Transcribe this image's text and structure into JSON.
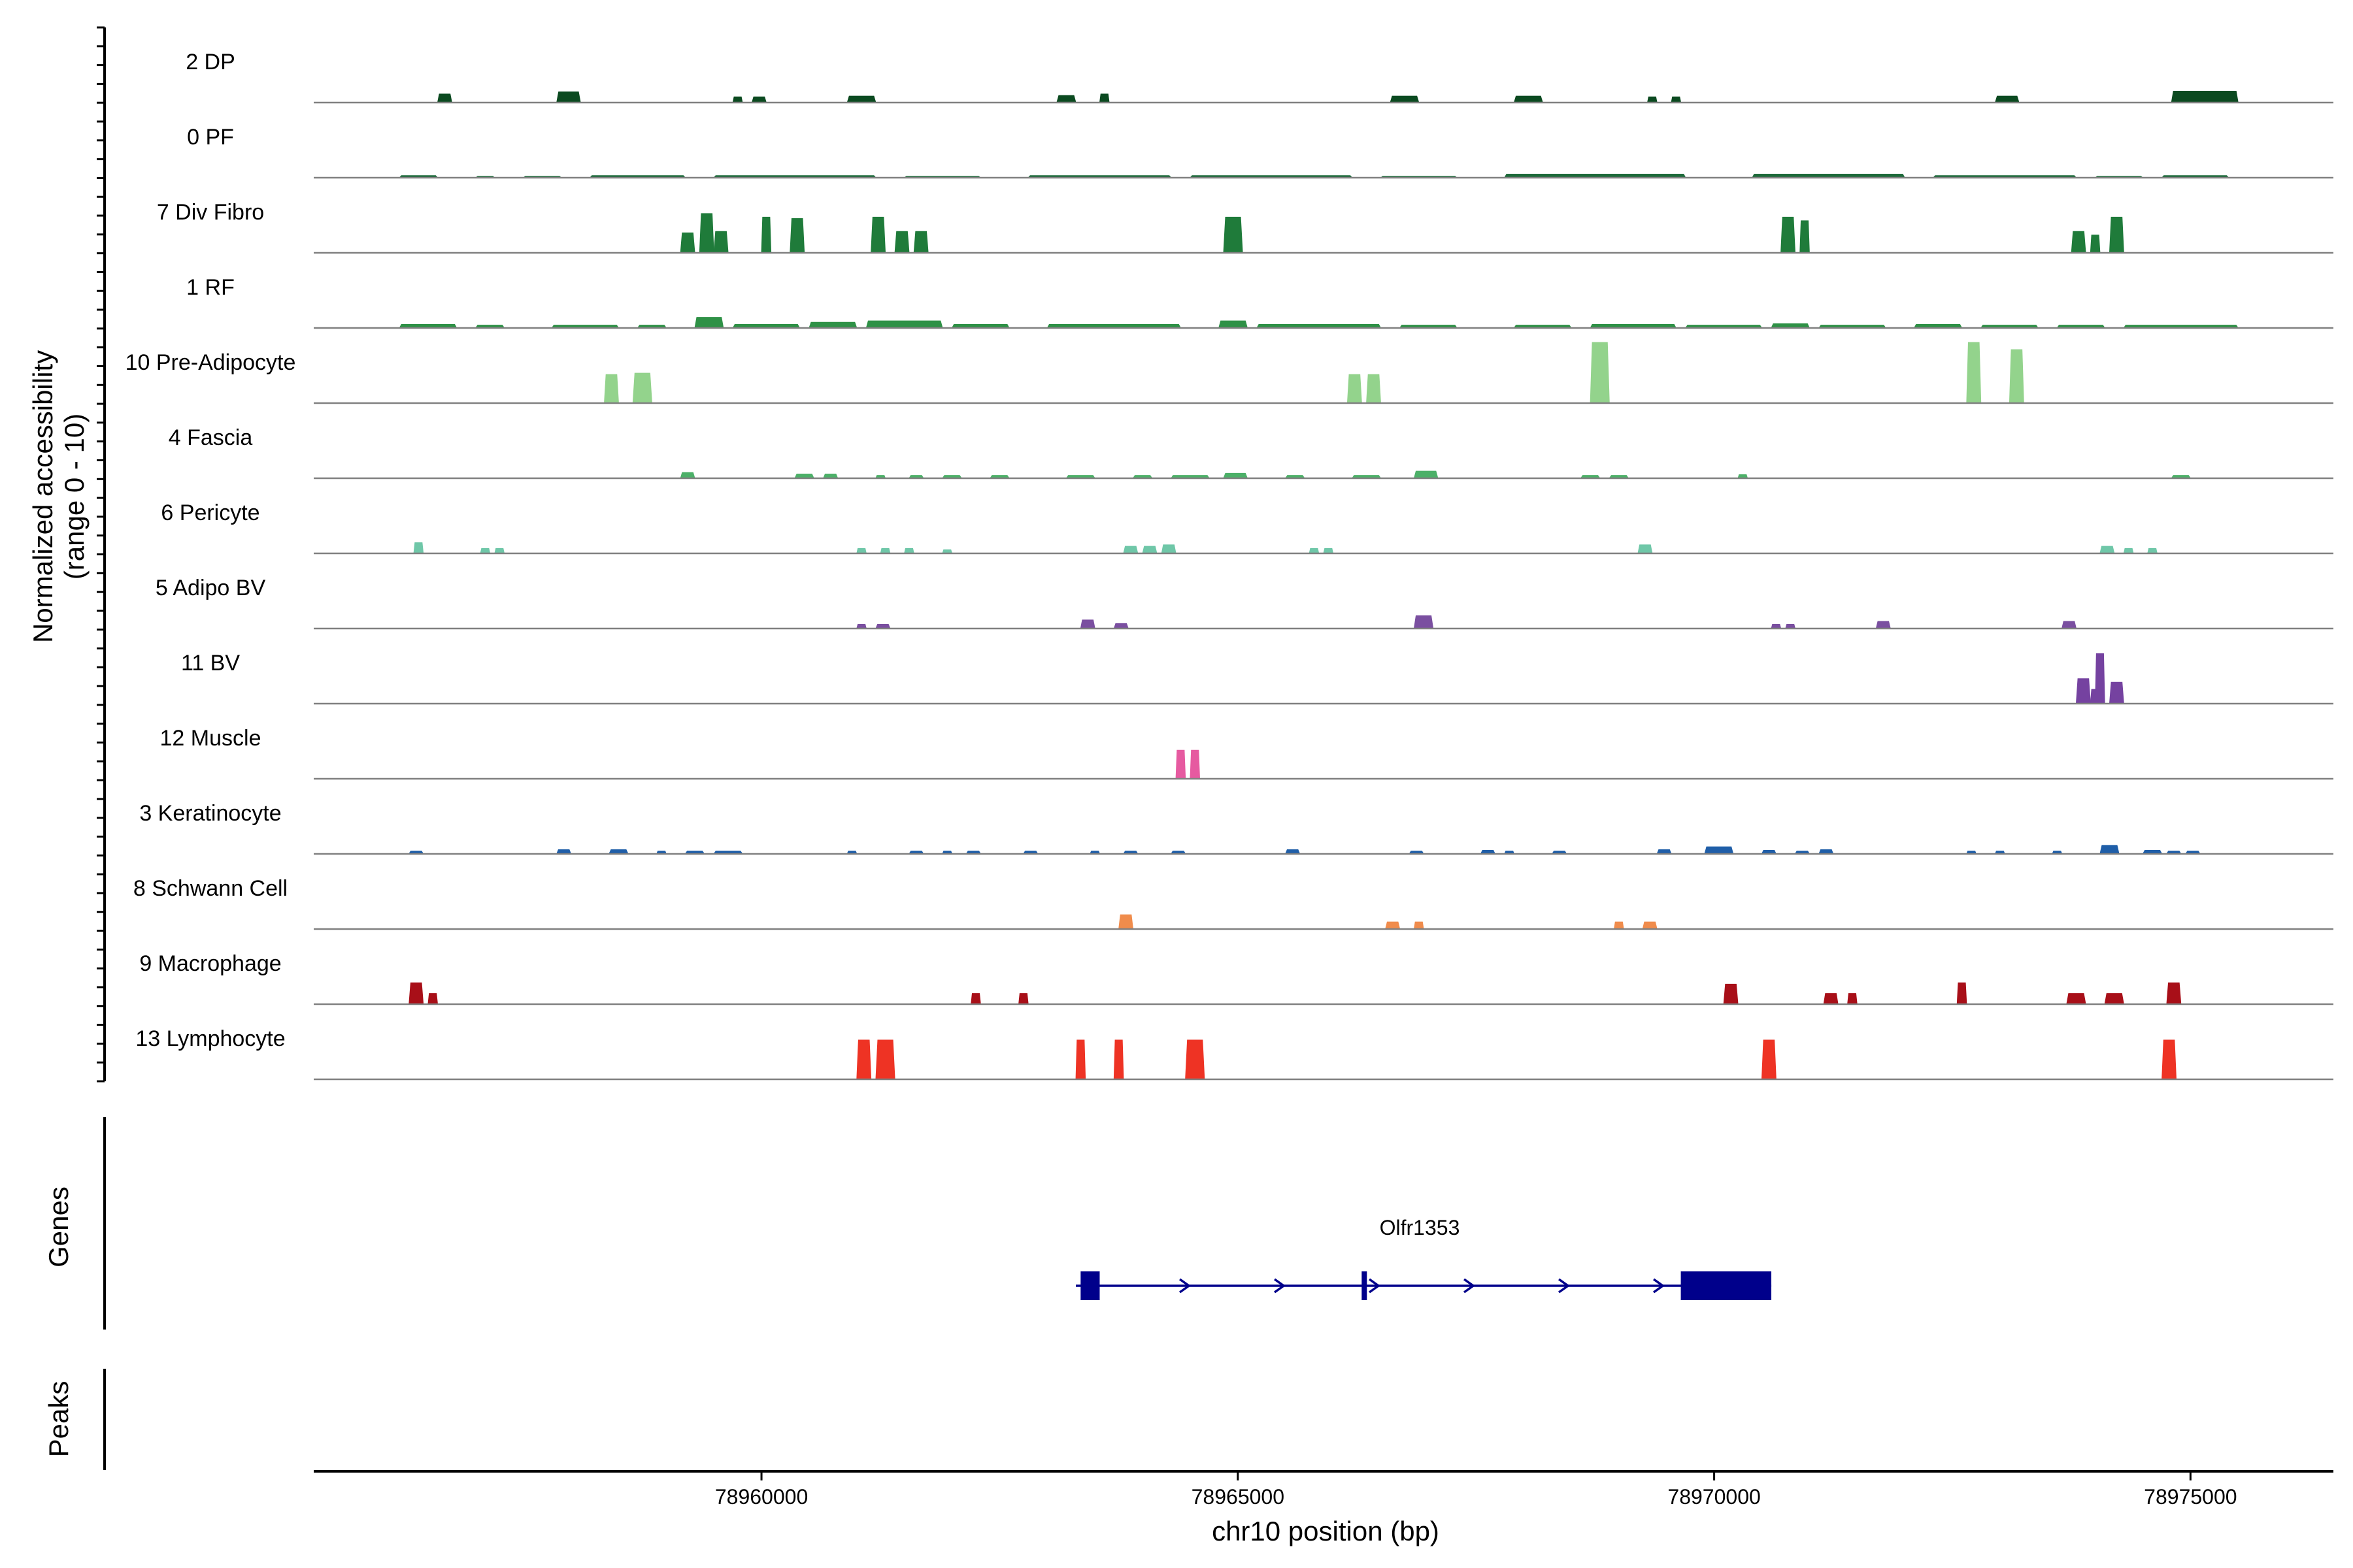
{
  "chart_data": {
    "type": "coverage_tracks",
    "ylabel_line1": "Normalized accessibility",
    "ylabel_line2": "(range 0 - 10)",
    "xlabel": "chr10 position (bp)",
    "xlim": [
      78955300,
      78976500
    ],
    "xticks": [
      78960000,
      78965000,
      78970000,
      78975000
    ],
    "xtick_labels": [
      "78960000",
      "78965000",
      "78970000",
      "78975000"
    ],
    "panel_labels": {
      "genes": "Genes",
      "peaks": "Peaks"
    },
    "tracks": [
      {
        "name": "2 DP",
        "color": "#0b4a20",
        "peaks": [
          [
            78956600,
            78956750,
            0.12
          ],
          [
            78957850,
            78958100,
            0.15
          ],
          [
            78959700,
            78959800,
            0.08
          ],
          [
            78959900,
            78960050,
            0.08
          ],
          [
            78960900,
            78961200,
            0.09
          ],
          [
            78963100,
            78963300,
            0.1
          ],
          [
            78963550,
            78963650,
            0.12
          ],
          [
            78966600,
            78966900,
            0.09
          ],
          [
            78967900,
            78968200,
            0.09
          ],
          [
            78969300,
            78969400,
            0.08
          ],
          [
            78969550,
            78969650,
            0.08
          ],
          [
            78972950,
            78973200,
            0.09
          ],
          [
            78974800,
            78975500,
            0.16
          ]
        ]
      },
      {
        "name": "0 PF",
        "color": "#1d6a3a",
        "peaks": [
          [
            78956200,
            78956600,
            0.03
          ],
          [
            78957000,
            78957200,
            0.02
          ],
          [
            78957500,
            78957900,
            0.02
          ],
          [
            78958200,
            78959200,
            0.03
          ],
          [
            78959500,
            78961200,
            0.03
          ],
          [
            78961500,
            78962300,
            0.02
          ],
          [
            78962800,
            78964300,
            0.03
          ],
          [
            78964500,
            78966200,
            0.03
          ],
          [
            78966500,
            78967300,
            0.02
          ],
          [
            78967800,
            78969700,
            0.05
          ],
          [
            78970400,
            78972000,
            0.05
          ],
          [
            78972300,
            78973800,
            0.03
          ],
          [
            78974000,
            78974500,
            0.02
          ],
          [
            78974700,
            78975400,
            0.03
          ]
        ]
      },
      {
        "name": "7 Div Fibro",
        "color": "#1f7b3a",
        "peaks": [
          [
            78959150,
            78959300,
            0.28
          ],
          [
            78959350,
            78959500,
            0.55
          ],
          [
            78959500,
            78959650,
            0.3
          ],
          [
            78960000,
            78960100,
            0.5
          ],
          [
            78960300,
            78960450,
            0.48
          ],
          [
            78961150,
            78961300,
            0.5
          ],
          [
            78961400,
            78961550,
            0.3
          ],
          [
            78961600,
            78961750,
            0.3
          ],
          [
            78964850,
            78965050,
            0.5
          ],
          [
            78970700,
            78970850,
            0.5
          ],
          [
            78970900,
            78971000,
            0.45
          ],
          [
            78973750,
            78973900,
            0.3
          ],
          [
            78973950,
            78974050,
            0.25
          ],
          [
            78974150,
            78974300,
            0.5
          ]
        ]
      },
      {
        "name": "1 RF",
        "color": "#2e9146",
        "peaks": [
          [
            78956200,
            78956800,
            0.05
          ],
          [
            78957000,
            78957300,
            0.04
          ],
          [
            78957800,
            78958500,
            0.04
          ],
          [
            78958700,
            78959000,
            0.04
          ],
          [
            78959300,
            78959600,
            0.15
          ],
          [
            78959700,
            78960400,
            0.05
          ],
          [
            78960500,
            78961000,
            0.08
          ],
          [
            78961100,
            78961900,
            0.1
          ],
          [
            78962000,
            78962600,
            0.05
          ],
          [
            78963000,
            78964400,
            0.05
          ],
          [
            78964800,
            78965100,
            0.1
          ],
          [
            78965200,
            78966500,
            0.05
          ],
          [
            78966700,
            78967300,
            0.04
          ],
          [
            78967900,
            78968500,
            0.04
          ],
          [
            78968700,
            78969600,
            0.05
          ],
          [
            78969700,
            78970500,
            0.04
          ],
          [
            78970600,
            78971000,
            0.06
          ],
          [
            78971100,
            78971800,
            0.04
          ],
          [
            78972100,
            78972600,
            0.05
          ],
          [
            78972800,
            78973400,
            0.04
          ],
          [
            78973600,
            78974100,
            0.04
          ],
          [
            78974300,
            78975500,
            0.04
          ]
        ]
      },
      {
        "name": "10 Pre-Adipocyte",
        "color": "#93d38c",
        "peaks": [
          [
            78958350,
            78958500,
            0.4
          ],
          [
            78958650,
            78958850,
            0.42
          ],
          [
            78966150,
            78966300,
            0.4
          ],
          [
            78966350,
            78966500,
            0.4
          ],
          [
            78968700,
            78968900,
            0.85
          ],
          [
            78972650,
            78972800,
            0.85
          ],
          [
            78973100,
            78973250,
            0.75
          ]
        ]
      },
      {
        "name": "4 Fascia",
        "color": "#4cb068",
        "peaks": [
          [
            78959150,
            78959300,
            0.08
          ],
          [
            78960350,
            78960550,
            0.06
          ],
          [
            78960650,
            78960800,
            0.06
          ],
          [
            78961200,
            78961300,
            0.04
          ],
          [
            78961550,
            78961700,
            0.04
          ],
          [
            78961900,
            78962100,
            0.04
          ],
          [
            78962400,
            78962600,
            0.04
          ],
          [
            78963200,
            78963500,
            0.04
          ],
          [
            78963900,
            78964100,
            0.04
          ],
          [
            78964300,
            78964700,
            0.04
          ],
          [
            78964850,
            78965100,
            0.07
          ],
          [
            78965500,
            78965700,
            0.04
          ],
          [
            78966200,
            78966500,
            0.04
          ],
          [
            78966850,
            78967100,
            0.1
          ],
          [
            78968600,
            78968800,
            0.04
          ],
          [
            78968900,
            78969100,
            0.04
          ],
          [
            78970250,
            78970350,
            0.05
          ],
          [
            78974800,
            78975000,
            0.04
          ]
        ]
      },
      {
        "name": "6 Pericyte",
        "color": "#6fc7a8",
        "peaks": [
          [
            78956350,
            78956450,
            0.15
          ],
          [
            78957050,
            78957150,
            0.07
          ],
          [
            78957200,
            78957300,
            0.07
          ],
          [
            78961000,
            78961100,
            0.07
          ],
          [
            78961250,
            78961350,
            0.07
          ],
          [
            78961500,
            78961600,
            0.07
          ],
          [
            78961900,
            78962000,
            0.05
          ],
          [
            78963800,
            78963950,
            0.1
          ],
          [
            78964000,
            78964150,
            0.1
          ],
          [
            78964200,
            78964350,
            0.12
          ],
          [
            78965750,
            78965850,
            0.07
          ],
          [
            78965900,
            78966000,
            0.07
          ],
          [
            78969200,
            78969350,
            0.12
          ],
          [
            78974050,
            78974200,
            0.1
          ],
          [
            78974300,
            78974400,
            0.07
          ],
          [
            78974550,
            78974650,
            0.07
          ]
        ]
      },
      {
        "name": "5 Adipo BV",
        "color": "#7a4fa0",
        "peaks": [
          [
            78961000,
            78961100,
            0.06
          ],
          [
            78961200,
            78961350,
            0.06
          ],
          [
            78963350,
            78963500,
            0.12
          ],
          [
            78963700,
            78963850,
            0.07
          ],
          [
            78966850,
            78967050,
            0.18
          ],
          [
            78970600,
            78970700,
            0.06
          ],
          [
            78970750,
            78970850,
            0.06
          ],
          [
            78971700,
            78971850,
            0.1
          ],
          [
            78973650,
            78973800,
            0.1
          ]
        ]
      },
      {
        "name": "11 BV",
        "color": "#7542a0",
        "peaks": [
          [
            78973800,
            78973950,
            0.35
          ],
          [
            78973950,
            78974050,
            0.2
          ],
          [
            78974000,
            78974100,
            0.7
          ],
          [
            78974150,
            78974300,
            0.3
          ]
        ]
      },
      {
        "name": "12 Muscle",
        "color": "#e65aa0",
        "peaks": [
          [
            78964350,
            78964450,
            0.4
          ],
          [
            78964500,
            78964600,
            0.4
          ]
        ]
      },
      {
        "name": "3 Keratinocyte",
        "color": "#1f5ea8",
        "peaks": [
          [
            78956300,
            78956450,
            0.04
          ],
          [
            78957850,
            78958000,
            0.06
          ],
          [
            78958400,
            78958600,
            0.06
          ],
          [
            78958900,
            78959000,
            0.04
          ],
          [
            78959200,
            78959400,
            0.04
          ],
          [
            78959500,
            78959800,
            0.04
          ],
          [
            78960900,
            78961000,
            0.04
          ],
          [
            78961550,
            78961700,
            0.04
          ],
          [
            78961900,
            78962000,
            0.04
          ],
          [
            78962150,
            78962300,
            0.04
          ],
          [
            78962750,
            78962900,
            0.04
          ],
          [
            78963450,
            78963550,
            0.04
          ],
          [
            78963800,
            78963950,
            0.04
          ],
          [
            78964300,
            78964450,
            0.04
          ],
          [
            78965500,
            78965650,
            0.06
          ],
          [
            78966800,
            78966950,
            0.04
          ],
          [
            78967550,
            78967700,
            0.05
          ],
          [
            78967800,
            78967900,
            0.04
          ],
          [
            78968300,
            78968450,
            0.04
          ],
          [
            78969400,
            78969550,
            0.06
          ],
          [
            78969900,
            78970200,
            0.1
          ],
          [
            78970500,
            78970650,
            0.05
          ],
          [
            78970850,
            78971000,
            0.04
          ],
          [
            78971100,
            78971250,
            0.06
          ],
          [
            78972650,
            78972750,
            0.04
          ],
          [
            78972950,
            78973050,
            0.04
          ],
          [
            78973550,
            78973650,
            0.04
          ],
          [
            78974050,
            78974250,
            0.12
          ],
          [
            78974500,
            78974700,
            0.05
          ],
          [
            78974750,
            78974900,
            0.04
          ],
          [
            78974950,
            78975100,
            0.04
          ]
        ]
      },
      {
        "name": "8 Schwann Cell",
        "color": "#f08c4c",
        "peaks": [
          [
            78963750,
            78963900,
            0.2
          ],
          [
            78966550,
            78966700,
            0.1
          ],
          [
            78966850,
            78966950,
            0.1
          ],
          [
            78968950,
            78969050,
            0.1
          ],
          [
            78969250,
            78969400,
            0.1
          ]
        ]
      },
      {
        "name": "9 Macrophage",
        "color": "#a80f18",
        "peaks": [
          [
            78956300,
            78956450,
            0.3
          ],
          [
            78956500,
            78956600,
            0.15
          ],
          [
            78962200,
            78962300,
            0.15
          ],
          [
            78962700,
            78962800,
            0.15
          ],
          [
            78970100,
            78970250,
            0.28
          ],
          [
            78971150,
            78971300,
            0.15
          ],
          [
            78971400,
            78971500,
            0.15
          ],
          [
            78972550,
            78972650,
            0.3
          ],
          [
            78973700,
            78973900,
            0.15
          ],
          [
            78974100,
            78974300,
            0.15
          ],
          [
            78974750,
            78974900,
            0.3
          ]
        ]
      },
      {
        "name": "13 Lymphocyte",
        "color": "#ee3324",
        "peaks": [
          [
            78961000,
            78961150,
            0.55
          ],
          [
            78961200,
            78961400,
            0.55
          ],
          [
            78963300,
            78963400,
            0.55
          ],
          [
            78963700,
            78963800,
            0.55
          ],
          [
            78964450,
            78964650,
            0.55
          ],
          [
            78970500,
            78970650,
            0.55
          ],
          [
            78974700,
            78974850,
            0.55
          ]
        ]
      }
    ],
    "gene": {
      "name": "Olfr1353",
      "color": "#00008b",
      "strand": "+",
      "start": 78963300,
      "end": 78970600,
      "exons": [
        [
          78963350,
          78963550
        ],
        [
          78966300,
          78966350
        ],
        [
          78969650,
          78970600
        ]
      ]
    }
  }
}
